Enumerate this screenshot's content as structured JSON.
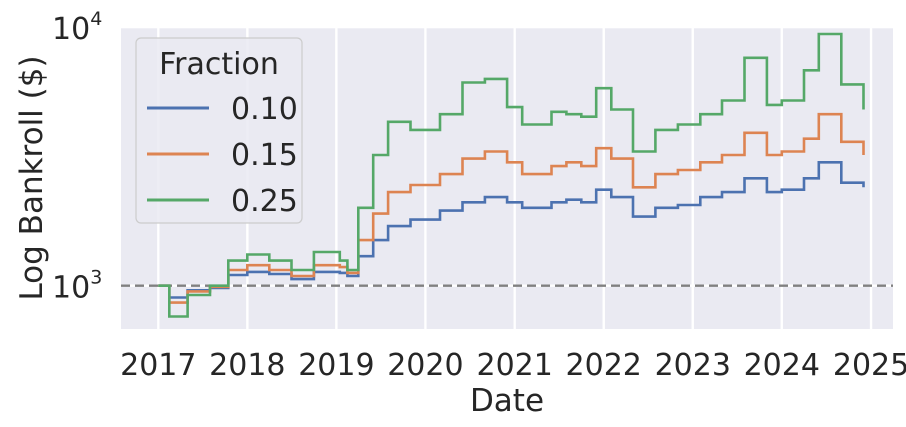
{
  "chart_data": {
    "type": "line",
    "xlabel": "Date",
    "ylabel": "Log Bankroll ($)",
    "yscale": "log",
    "ylim": [
      680,
      10000
    ],
    "xlim": [
      "2016-08-01",
      "2025-04-01"
    ],
    "x_ticks": [
      "2017",
      "2018",
      "2019",
      "2020",
      "2021",
      "2022",
      "2023",
      "2024",
      "2025"
    ],
    "y_ticks": [
      {
        "base": "10",
        "exp": "3",
        "value": 1000
      },
      {
        "base": "10",
        "exp": "4",
        "value": 10000
      }
    ],
    "reference_line": {
      "value": 1000,
      "style": "dashed",
      "color": "#808080"
    },
    "grid": true,
    "background": "#eaeaf2",
    "legend": {
      "title": "Fraction",
      "position": "top-left"
    },
    "series": [
      {
        "name": "0.10",
        "color": "#4c72b0",
        "points": [
          [
            "2017-01-01",
            1000
          ],
          [
            "2017-02-15",
            900
          ],
          [
            "2017-05-01",
            960
          ],
          [
            "2017-08-01",
            980
          ],
          [
            "2017-10-15",
            1100
          ],
          [
            "2018-01-01",
            1130
          ],
          [
            "2018-04-01",
            1110
          ],
          [
            "2018-07-01",
            1060
          ],
          [
            "2018-10-01",
            1130
          ],
          [
            "2019-01-15",
            1120
          ],
          [
            "2019-02-15",
            1090
          ],
          [
            "2019-04-01",
            1300
          ],
          [
            "2019-06-01",
            1500
          ],
          [
            "2019-08-01",
            1700
          ],
          [
            "2019-11-01",
            1800
          ],
          [
            "2020-03-01",
            1950
          ],
          [
            "2020-06-01",
            2100
          ],
          [
            "2020-09-01",
            2200
          ],
          [
            "2020-12-01",
            2100
          ],
          [
            "2021-02-01",
            2000
          ],
          [
            "2021-06-01",
            2100
          ],
          [
            "2021-08-01",
            2150
          ],
          [
            "2021-10-01",
            2100
          ],
          [
            "2021-12-01",
            2350
          ],
          [
            "2022-02-01",
            2200
          ],
          [
            "2022-05-01",
            1850
          ],
          [
            "2022-08-01",
            2000
          ],
          [
            "2022-11-01",
            2050
          ],
          [
            "2023-02-01",
            2200
          ],
          [
            "2023-05-01",
            2300
          ],
          [
            "2023-08-01",
            2600
          ],
          [
            "2023-11-01",
            2300
          ],
          [
            "2024-01-01",
            2350
          ],
          [
            "2024-04-01",
            2600
          ],
          [
            "2024-06-01",
            3000
          ],
          [
            "2024-09-01",
            2500
          ],
          [
            "2024-12-01",
            2400
          ]
        ]
      },
      {
        "name": "0.15",
        "color": "#dd8452",
        "points": [
          [
            "2017-01-01",
            1000
          ],
          [
            "2017-02-15",
            860
          ],
          [
            "2017-05-01",
            950
          ],
          [
            "2017-08-01",
            990
          ],
          [
            "2017-10-15",
            1150
          ],
          [
            "2018-01-01",
            1200
          ],
          [
            "2018-04-01",
            1150
          ],
          [
            "2018-07-01",
            1090
          ],
          [
            "2018-10-01",
            1200
          ],
          [
            "2019-01-15",
            1180
          ],
          [
            "2019-02-15",
            1120
          ],
          [
            "2019-04-01",
            1500
          ],
          [
            "2019-06-01",
            1900
          ],
          [
            "2019-08-01",
            2300
          ],
          [
            "2019-11-01",
            2450
          ],
          [
            "2020-03-01",
            2700
          ],
          [
            "2020-06-01",
            3100
          ],
          [
            "2020-09-01",
            3300
          ],
          [
            "2020-12-01",
            3000
          ],
          [
            "2021-02-01",
            2700
          ],
          [
            "2021-06-01",
            2900
          ],
          [
            "2021-08-01",
            3000
          ],
          [
            "2021-10-01",
            2900
          ],
          [
            "2021-12-01",
            3400
          ],
          [
            "2022-02-01",
            3100
          ],
          [
            "2022-05-01",
            2400
          ],
          [
            "2022-08-01",
            2700
          ],
          [
            "2022-11-01",
            2800
          ],
          [
            "2023-02-01",
            3000
          ],
          [
            "2023-05-01",
            3200
          ],
          [
            "2023-08-01",
            3900
          ],
          [
            "2023-11-01",
            3200
          ],
          [
            "2024-01-01",
            3300
          ],
          [
            "2024-04-01",
            3700
          ],
          [
            "2024-06-01",
            4600
          ],
          [
            "2024-09-01",
            3600
          ],
          [
            "2024-12-01",
            3200
          ]
        ]
      },
      {
        "name": "0.25",
        "color": "#55a868",
        "points": [
          [
            "2017-01-01",
            1000
          ],
          [
            "2017-02-15",
            760
          ],
          [
            "2017-05-01",
            920
          ],
          [
            "2017-08-01",
            1000
          ],
          [
            "2017-10-15",
            1250
          ],
          [
            "2018-01-01",
            1320
          ],
          [
            "2018-04-01",
            1250
          ],
          [
            "2018-07-01",
            1150
          ],
          [
            "2018-10-01",
            1350
          ],
          [
            "2019-01-15",
            1250
          ],
          [
            "2019-02-15",
            1150
          ],
          [
            "2019-04-01",
            2000
          ],
          [
            "2019-06-01",
            3200
          ],
          [
            "2019-08-01",
            4300
          ],
          [
            "2019-11-01",
            4000
          ],
          [
            "2020-03-01",
            4600
          ],
          [
            "2020-06-01",
            6100
          ],
          [
            "2020-09-01",
            6300
          ],
          [
            "2020-12-01",
            4900
          ],
          [
            "2021-02-01",
            4200
          ],
          [
            "2021-06-01",
            4700
          ],
          [
            "2021-08-01",
            4600
          ],
          [
            "2021-10-01",
            4500
          ],
          [
            "2021-12-01",
            5800
          ],
          [
            "2022-02-01",
            4800
          ],
          [
            "2022-05-01",
            3300
          ],
          [
            "2022-08-01",
            4000
          ],
          [
            "2022-11-01",
            4200
          ],
          [
            "2023-02-01",
            4600
          ],
          [
            "2023-05-01",
            5200
          ],
          [
            "2023-08-01",
            7600
          ],
          [
            "2023-11-01",
            5000
          ],
          [
            "2024-01-01",
            5200
          ],
          [
            "2024-04-01",
            6800
          ],
          [
            "2024-06-01",
            9400
          ],
          [
            "2024-09-01",
            6000
          ],
          [
            "2024-12-01",
            4800
          ]
        ]
      }
    ]
  }
}
